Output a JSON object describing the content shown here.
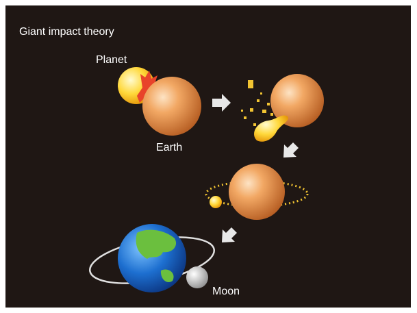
{
  "title": "Giant impact theory",
  "labels": {
    "planet": "Planet",
    "earth": "Earth",
    "moon": "Moon"
  }
}
